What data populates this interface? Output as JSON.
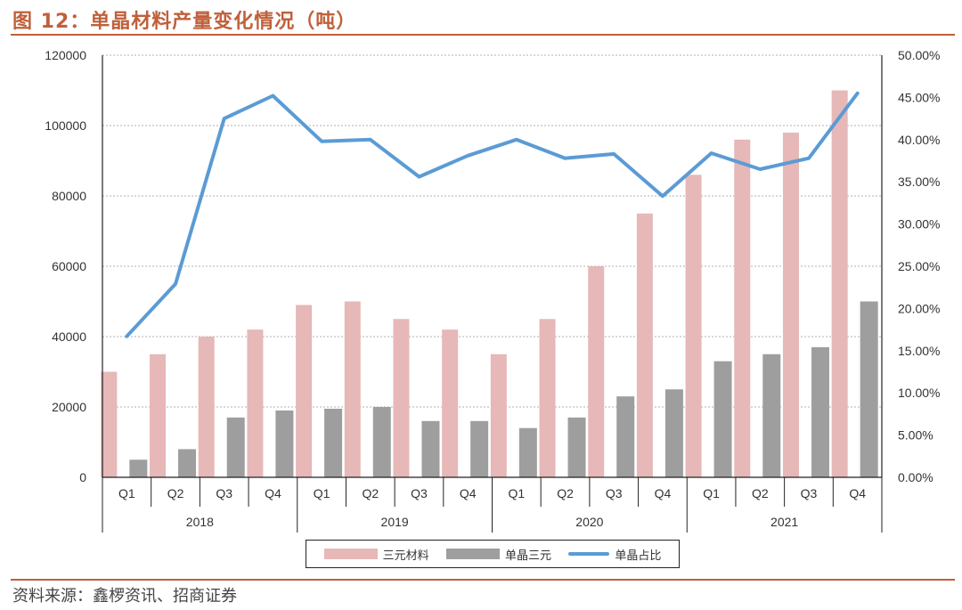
{
  "header": {
    "title": "图 12：单晶材料产量变化情况（吨）"
  },
  "footer": {
    "source": "资料来源：鑫椤资讯、招商证券"
  },
  "legend": [
    {
      "label": "三元材料"
    },
    {
      "label": "单晶三元"
    },
    {
      "label": "单晶占比"
    }
  ],
  "colors": {
    "title": "#c0603a",
    "ternary": "#e6b8b7",
    "single_crystal": "#9e9e9e",
    "share_line": "#5b9bd5"
  },
  "chart_data": {
    "type": "bar",
    "categories": [
      "Q1",
      "Q2",
      "Q3",
      "Q4",
      "Q1",
      "Q2",
      "Q3",
      "Q4",
      "Q1",
      "Q2",
      "Q3",
      "Q4",
      "Q1",
      "Q2",
      "Q3",
      "Q4"
    ],
    "groups": [
      {
        "label": "2018",
        "count": 4
      },
      {
        "label": "2019",
        "count": 4
      },
      {
        "label": "2020",
        "count": 4
      },
      {
        "label": "2021",
        "count": 4
      }
    ],
    "series": [
      {
        "name": "三元材料",
        "type": "bar",
        "axis": "left",
        "values": [
          30000,
          35000,
          40000,
          42000,
          49000,
          50000,
          45000,
          42000,
          35000,
          45000,
          60000,
          75000,
          86000,
          96000,
          98000,
          110000
        ]
      },
      {
        "name": "单晶三元",
        "type": "bar",
        "axis": "left",
        "values": [
          5000,
          8000,
          17000,
          19000,
          19500,
          20000,
          16000,
          16000,
          14000,
          17000,
          23000,
          25000,
          33000,
          35000,
          37000,
          50000
        ]
      },
      {
        "name": "单晶占比",
        "type": "line",
        "axis": "right",
        "values": [
          16.7,
          22.9,
          42.5,
          45.2,
          39.8,
          40.0,
          35.6,
          38.1,
          40.0,
          37.8,
          38.3,
          33.3,
          38.4,
          36.5,
          37.8,
          45.5
        ]
      }
    ],
    "y_left": {
      "min": 0,
      "max": 120000,
      "step": 20000
    },
    "y_right": {
      "min": 0,
      "max": 50,
      "step": 5,
      "format": "percent2"
    },
    "grid": true,
    "legend_position": "bottom"
  }
}
